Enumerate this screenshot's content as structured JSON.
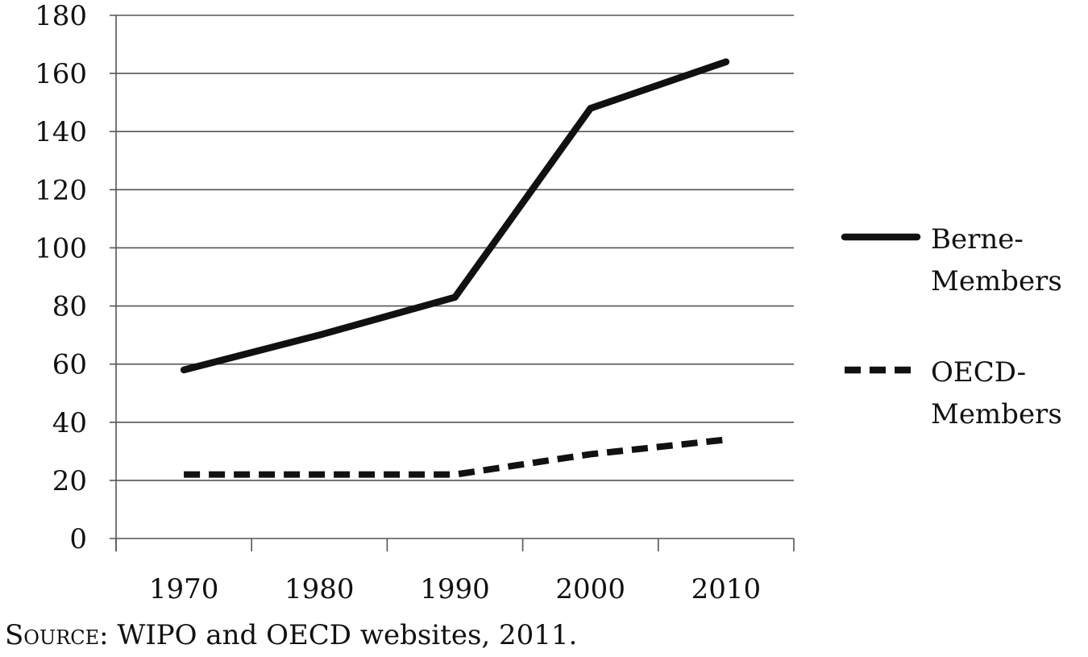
{
  "chart_data": {
    "type": "line",
    "x": [
      1970,
      1980,
      1990,
      2000,
      2010
    ],
    "x_tick_labels": [
      "1970",
      "1980",
      "1990",
      "2000",
      "2010"
    ],
    "y_tick_values": [
      0,
      20,
      40,
      60,
      80,
      100,
      120,
      140,
      160,
      180
    ],
    "ylim": [
      0,
      180
    ],
    "grid": "horizontal",
    "legend_position": "right",
    "series": [
      {
        "name": "Berne- Members",
        "name_lines": [
          "Berne-",
          "Members"
        ],
        "style": "solid",
        "color": "#111111",
        "values": [
          58,
          70,
          83,
          148,
          164
        ]
      },
      {
        "name": "OECD- Members",
        "name_lines": [
          "OECD-",
          "Members"
        ],
        "style": "dashed",
        "color": "#111111",
        "values": [
          22,
          22,
          22,
          29,
          34
        ]
      }
    ]
  },
  "source": {
    "prefix": "Source",
    "text": ": WIPO and OECD websites, 2011."
  }
}
